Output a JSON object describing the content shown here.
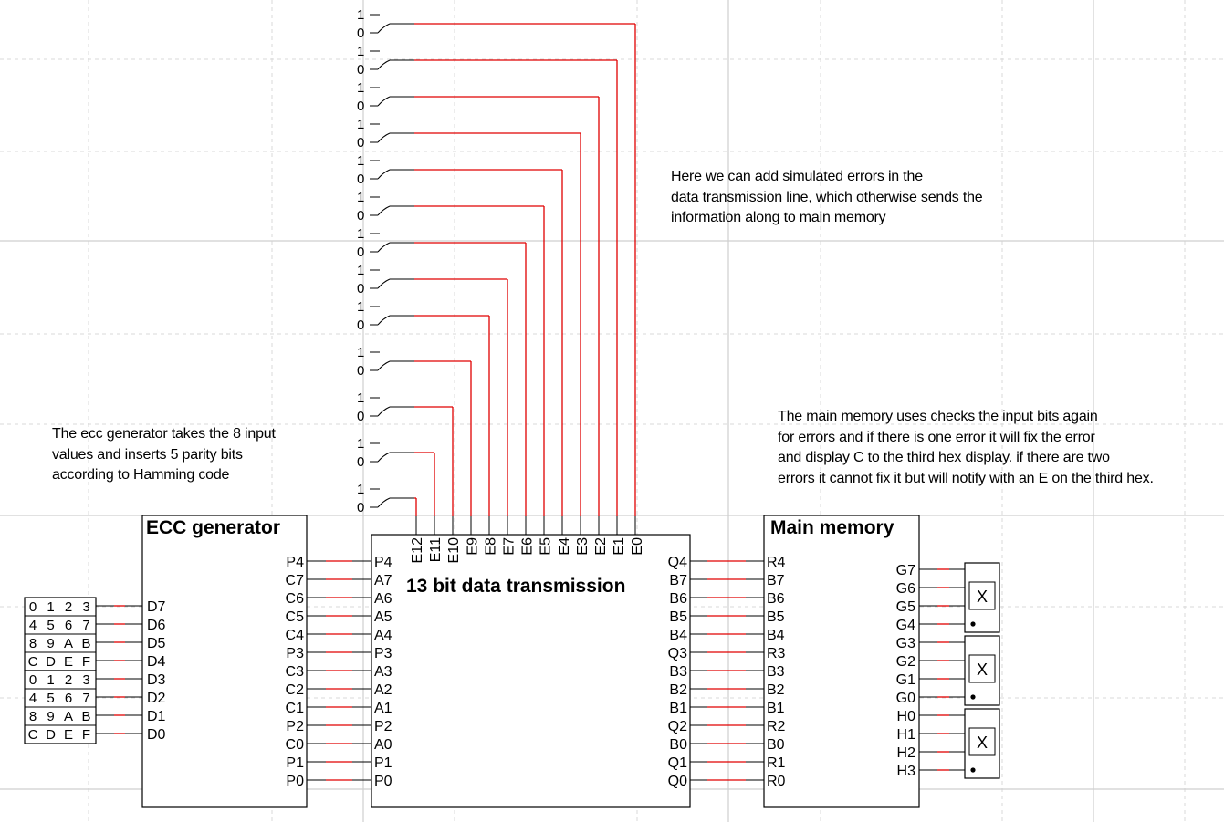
{
  "colors": {
    "wire": "#e00000",
    "outline": "#000000",
    "grid_major": "#cfcfcf",
    "grid_minor": "#d8d8d8",
    "background": "#ffffff"
  },
  "notes": {
    "error_injection": [
      "Here we can add simulated errors in the",
      "data transmission line, which otherwise sends the",
      "information along to main memory"
    ],
    "ecc_generator": [
      "The ecc generator takes the 8 input",
      "values and inserts 5 parity bits",
      "according to Hamming code"
    ],
    "main_memory": [
      "The main memory uses checks the input bits again",
      "for errors and if there is one error it will fix the error",
      "and display C to the third hex display. if there are two",
      "errors it cannot fix it but will notify with an E on the third hex."
    ]
  },
  "error_switches": {
    "on_label": "1",
    "off_label": "0",
    "count": 13
  },
  "hex_keypads": [
    {
      "rows": [
        [
          "0",
          "1",
          "2",
          "3"
        ],
        [
          "4",
          "5",
          "6",
          "7"
        ],
        [
          "8",
          "9",
          "A",
          "B"
        ],
        [
          "C",
          "D",
          "E",
          "F"
        ]
      ]
    },
    {
      "rows": [
        [
          "0",
          "1",
          "2",
          "3"
        ],
        [
          "4",
          "5",
          "6",
          "7"
        ],
        [
          "8",
          "9",
          "A",
          "B"
        ],
        [
          "C",
          "D",
          "E",
          "F"
        ]
      ]
    }
  ],
  "ecc_generator": {
    "title": "ECC generator",
    "inputs": [
      "D7",
      "D6",
      "D5",
      "D4",
      "D3",
      "D2",
      "D1",
      "D0"
    ],
    "outputs": [
      "P4",
      "C7",
      "C6",
      "C5",
      "C4",
      "P3",
      "C3",
      "C2",
      "C1",
      "P2",
      "C0",
      "P1",
      "P0"
    ]
  },
  "transmission": {
    "title": "13 bit data transmission",
    "inputs": [
      "P4",
      "A7",
      "A6",
      "A5",
      "A4",
      "P3",
      "A3",
      "A2",
      "A1",
      "P2",
      "A0",
      "P1",
      "P0"
    ],
    "error_inputs": [
      "E12",
      "E11",
      "E10",
      "E9",
      "E8",
      "E7",
      "E6",
      "E5",
      "E4",
      "E3",
      "E2",
      "E1",
      "E0"
    ],
    "outputs": [
      "Q4",
      "B7",
      "B6",
      "B5",
      "B4",
      "Q3",
      "B3",
      "B2",
      "B1",
      "Q2",
      "B0",
      "Q1",
      "Q0"
    ]
  },
  "main_memory": {
    "title": "Main memory",
    "inputs": [
      "R4",
      "B7",
      "B6",
      "B5",
      "B4",
      "R3",
      "B3",
      "B2",
      "B1",
      "R2",
      "B0",
      "R1",
      "R0"
    ],
    "outputs": [
      "G7",
      "G6",
      "G5",
      "G4",
      "G3",
      "G2",
      "G1",
      "G0",
      "H0",
      "H1",
      "H2",
      "H3"
    ]
  },
  "hex_displays": [
    {
      "digit": "X"
    },
    {
      "digit": "X"
    },
    {
      "digit": "X"
    }
  ]
}
